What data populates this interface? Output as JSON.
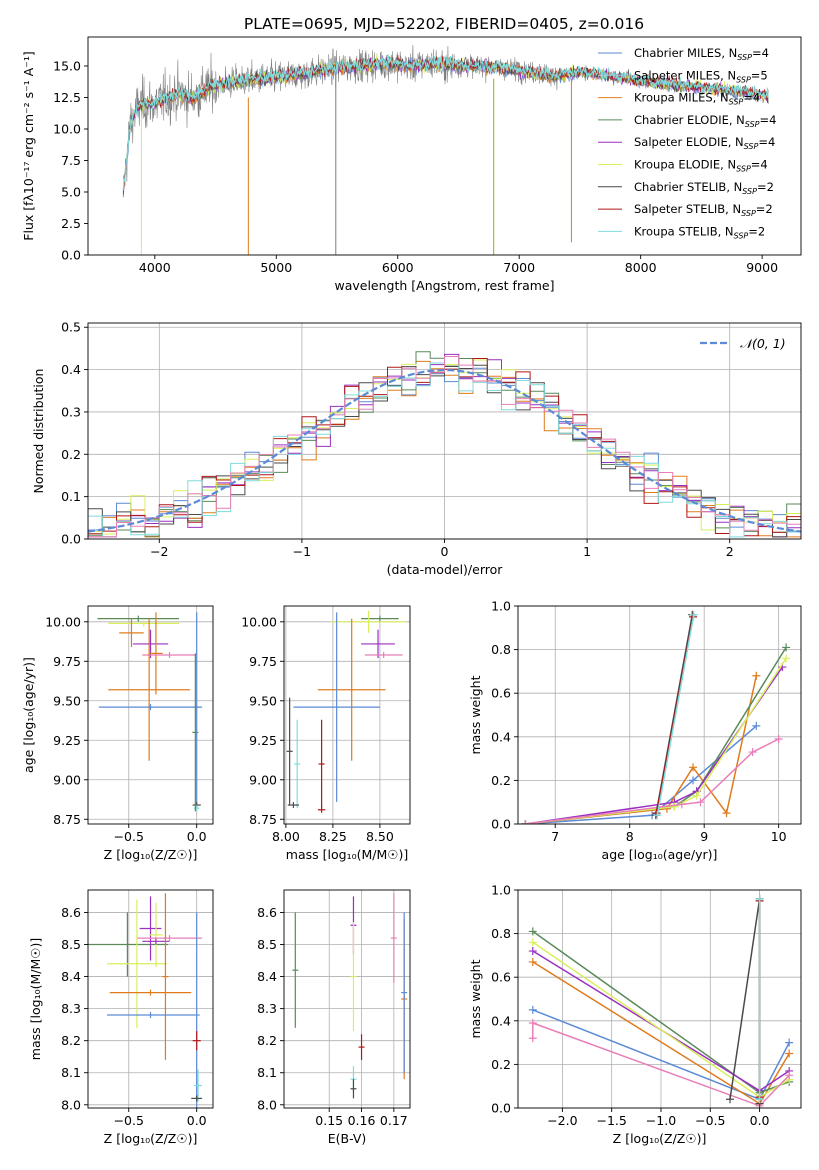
{
  "figure": {
    "title": "PLATE=0695, MJD=52202, FIBERID=0405, z=0.016"
  },
  "chart_data": [
    {
      "id": "spectrum",
      "type": "line",
      "title": "PLATE=0695, MJD=52202, FIBERID=0405, z=0.016",
      "xlabel": "wavelength [Angstrom, rest frame]",
      "ylabel": "Flux [fλ10⁻¹⁷ erg cm⁻² s⁻¹ A⁻¹]",
      "xlim": [
        3450,
        9320
      ],
      "ylim": [
        0,
        17.3
      ],
      "xticks": [
        4000,
        5000,
        6000,
        7000,
        8000,
        9000
      ],
      "yticks": [
        0.0,
        2.5,
        5.0,
        7.5,
        10.0,
        12.5,
        15.0
      ],
      "legend_position": "top-right",
      "series": [
        {
          "name": "Chabrier MILES, N_SSP=4",
          "color": "#5b8ad6"
        },
        {
          "name": "Salpeter MILES, N_SSP=5",
          "color": "#a7c7e7"
        },
        {
          "name": "Kroupa MILES, N_SSP=4",
          "color": "#e07b1b"
        },
        {
          "name": "Chabrier ELODIE, N_SSP=4",
          "color": "#5a8a5a"
        },
        {
          "name": "Salpeter ELODIE, N_SSP=4",
          "color": "#9b30c0"
        },
        {
          "name": "Kroupa ELODIE, N_SSP=4",
          "color": "#d9ef5a"
        },
        {
          "name": "Chabrier STELIB, N_SSP=2",
          "color": "#4a4a4a"
        },
        {
          "name": "Salpeter STELIB, N_SSP=2",
          "color": "#b01818"
        },
        {
          "name": "Kroupa STELIB, N_SSP=2",
          "color": "#7fdcdc"
        }
      ],
      "data_color": "#808080",
      "continuum_points": [
        [
          3740,
          5.0
        ],
        [
          3800,
          10.5
        ],
        [
          3850,
          11.5
        ],
        [
          3900,
          12.0
        ],
        [
          4000,
          12.0
        ],
        [
          4100,
          12.5
        ],
        [
          4200,
          12.8
        ],
        [
          4300,
          12.5
        ],
        [
          4400,
          13.0
        ],
        [
          4500,
          13.5
        ],
        [
          4700,
          13.8
        ],
        [
          4900,
          14.0
        ],
        [
          5100,
          14.2
        ],
        [
          5300,
          14.5
        ],
        [
          5500,
          14.8
        ],
        [
          5700,
          15.0
        ],
        [
          5900,
          15.2
        ],
        [
          6100,
          15.0
        ],
        [
          6300,
          15.2
        ],
        [
          6500,
          15.0
        ],
        [
          6700,
          15.0
        ],
        [
          6900,
          14.8
        ],
        [
          7100,
          14.5
        ],
        [
          7300,
          14.2
        ],
        [
          7500,
          14.5
        ],
        [
          7700,
          14.3
        ],
        [
          8000,
          13.8
        ],
        [
          8300,
          13.5
        ],
        [
          8600,
          13.2
        ],
        [
          8900,
          12.9
        ],
        [
          9050,
          12.6
        ]
      ],
      "spikes": [
        {
          "x": 3890,
          "ymin": 0.0,
          "ymax": 11.0,
          "color": "#d9ef5a"
        },
        {
          "x": 4770,
          "ymin": 0.0,
          "ymax": 12.5,
          "color": "#e07b1b"
        },
        {
          "x": 5490,
          "ymin": 0.0,
          "ymax": 14.5,
          "color": "#808080"
        },
        {
          "x": 6790,
          "ymin": 0.0,
          "ymax": 14.0,
          "color": "#a9a900"
        },
        {
          "x": 7430,
          "ymin": 1.0,
          "ymax": 14.0,
          "color": "#e07b1b"
        }
      ]
    },
    {
      "id": "residuals",
      "type": "step",
      "xlabel": "(data-model)/error",
      "ylabel": "Normed distribution",
      "xlim": [
        -2.5,
        2.5
      ],
      "ylim": [
        0,
        0.51
      ],
      "xticks": [
        -2,
        -1,
        0,
        1,
        2
      ],
      "yticks": [
        0.0,
        0.1,
        0.2,
        0.3,
        0.4,
        0.5
      ],
      "grid": true,
      "legend_position": "top-right",
      "reference": {
        "label": "𝒩(0, 1)",
        "color": "#5b8ad6",
        "mean": 0,
        "sigma": 1
      },
      "bin_width": 0.1,
      "series_colors": [
        "#5b8ad6",
        "#e07b1b",
        "#5a8a5a",
        "#9b30c0",
        "#d9ef5a",
        "#4a4a4a",
        "#b01818",
        "#7fdcdc",
        "#e87fb8"
      ]
    },
    {
      "id": "age-vs-Z",
      "type": "errorbar",
      "xlabel": "Z [log₁₀(Z/Z☉)]",
      "ylabel": "age  [log₁₀(age/yr)]",
      "xlim": [
        -0.8,
        0.12
      ],
      "ylim": [
        8.72,
        10.1
      ],
      "xticks": [
        -0.5,
        0.0
      ],
      "yticks": [
        8.75,
        9.0,
        9.25,
        9.5,
        9.75,
        10.0
      ],
      "grid": true,
      "points": [
        {
          "x": -0.43,
          "y": 10.02,
          "xerr": 0.3,
          "yerr": 0.0,
          "color": "#5a8a5a"
        },
        {
          "x": -0.39,
          "y": 9.99,
          "xerr": 0.26,
          "yerr": 0.0,
          "color": "#d9ef5a"
        },
        {
          "x": -0.48,
          "y": 9.93,
          "xerr": 0.09,
          "yerr": 0.09,
          "color": "#e07b1b"
        },
        {
          "x": -0.34,
          "y": 9.86,
          "xerr": 0.13,
          "yerr": 0.09,
          "color": "#9b30c0"
        },
        {
          "x": -0.3,
          "y": 9.8,
          "xerr": 0.05,
          "yerr": 0.26,
          "color": "#e07b1b"
        },
        {
          "x": -0.2,
          "y": 9.79,
          "xerr": 0.2,
          "yerr": 0.0,
          "color": "#e87fb8"
        },
        {
          "x": -0.35,
          "y": 9.57,
          "xerr": 0.3,
          "yerr": 0.45,
          "color": "#e07b1b"
        },
        {
          "x": -0.34,
          "y": 9.46,
          "xerr": 0.38,
          "yerr": 0.0,
          "color": "#5b8ad6"
        },
        {
          "x": 0.0,
          "y": 9.46,
          "xerr": 0.0,
          "yerr": 0.6,
          "color": "#5b8ad6"
        },
        {
          "x": 0.0,
          "y": 8.84,
          "xerr": 0.03,
          "yerr": 0.0,
          "color": "#4a4a4a"
        },
        {
          "x": 0.0,
          "y": 8.82,
          "xerr": 0.02,
          "yerr": 0.0,
          "color": "#7fdcdc"
        },
        {
          "x": -0.01,
          "y": 9.3,
          "xerr": 0.0,
          "yerr": 0.5,
          "color": "#5a8a5a"
        }
      ]
    },
    {
      "id": "age-vs-mass",
      "type": "errorbar",
      "xlabel": "mass [log₁₀(M/M☉)]",
      "ylabel": "",
      "xlim": [
        7.99,
        8.66
      ],
      "ylim": [
        8.72,
        10.1
      ],
      "xticks": [
        8.0,
        8.25,
        8.5
      ],
      "yticks": [
        8.75,
        9.0,
        9.25,
        9.5,
        9.75,
        10.0
      ],
      "grid": true,
      "points": [
        {
          "x": 8.5,
          "y": 10.02,
          "xerr": 0.1,
          "yerr": 0.0,
          "color": "#5a8a5a"
        },
        {
          "x": 8.44,
          "y": 10.0,
          "xerr": 0.2,
          "yerr": 0.07,
          "color": "#d9ef5a"
        },
        {
          "x": 8.49,
          "y": 9.86,
          "xerr": 0.09,
          "yerr": 0.09,
          "color": "#9b30c0"
        },
        {
          "x": 8.52,
          "y": 9.79,
          "xerr": 0.1,
          "yerr": 0.0,
          "color": "#e87fb8"
        },
        {
          "x": 8.35,
          "y": 9.57,
          "xerr": 0.18,
          "yerr": 0.45,
          "color": "#e07b1b"
        },
        {
          "x": 8.27,
          "y": 9.46,
          "xerr": 0.23,
          "yerr": 0.6,
          "color": "#5b8ad6"
        },
        {
          "x": 8.02,
          "y": 9.18,
          "xerr": 0.0,
          "yerr": 0.34,
          "color": "#4a4a4a"
        },
        {
          "x": 8.06,
          "y": 9.1,
          "xerr": 0.0,
          "yerr": 0.28,
          "color": "#7fdcdc"
        },
        {
          "x": 8.19,
          "y": 9.1,
          "xerr": 0.0,
          "yerr": 0.28,
          "color": "#b01818"
        },
        {
          "x": 8.04,
          "y": 8.84,
          "xerr": 0.03,
          "yerr": 0.0,
          "color": "#4a4a4a"
        },
        {
          "x": 8.19,
          "y": 8.81,
          "xerr": 0.02,
          "yerr": 0.0,
          "color": "#b01818"
        }
      ]
    },
    {
      "id": "mass-weight-vs-age",
      "type": "line",
      "xlabel": "age  [log₁₀(age/yr)]",
      "ylabel": "mass weight",
      "xlim": [
        6.5,
        10.3
      ],
      "ylim": [
        0,
        1.0
      ],
      "xticks": [
        7,
        8,
        9,
        10
      ],
      "yticks": [
        0.0,
        0.2,
        0.4,
        0.6,
        0.8,
        1.0
      ],
      "grid": true,
      "series": [
        {
          "color": "#5b8ad6",
          "x": [
            6.6,
            8.3,
            8.85,
            9.7
          ],
          "y": [
            0.0,
            0.04,
            0.2,
            0.45
          ]
        },
        {
          "color": "#e07b1b",
          "x": [
            6.6,
            8.5,
            8.85,
            9.3,
            9.7
          ],
          "y": [
            0.0,
            0.07,
            0.26,
            0.05,
            0.68
          ]
        },
        {
          "color": "#5a8a5a",
          "x": [
            6.6,
            8.6,
            8.9,
            10.1
          ],
          "y": [
            0.0,
            0.08,
            0.15,
            0.81
          ]
        },
        {
          "color": "#9b30c0",
          "x": [
            6.6,
            8.6,
            8.9,
            10.05
          ],
          "y": [
            0.0,
            0.1,
            0.15,
            0.72
          ]
        },
        {
          "color": "#d9ef5a",
          "x": [
            6.6,
            8.6,
            8.9,
            10.1
          ],
          "y": [
            0.0,
            0.08,
            0.13,
            0.76
          ]
        },
        {
          "color": "#e87fb8",
          "x": [
            6.6,
            8.7,
            8.95,
            9.65,
            10.0
          ],
          "y": [
            0.0,
            0.09,
            0.1,
            0.33,
            0.39
          ]
        },
        {
          "color": "#4a4a4a",
          "x": [
            8.35,
            8.84
          ],
          "y": [
            0.04,
            0.96
          ]
        },
        {
          "color": "#b01818",
          "x": [
            8.36,
            8.85
          ],
          "y": [
            0.05,
            0.95
          ]
        },
        {
          "color": "#7fdcdc",
          "x": [
            8.37,
            8.86
          ],
          "y": [
            0.04,
            0.96
          ]
        }
      ]
    },
    {
      "id": "mass-vs-Z",
      "type": "errorbar",
      "xlabel": "Z [log₁₀(Z/Z☉)]",
      "ylabel": "mass [log₁₀(M/M☉)]",
      "xlim": [
        -0.8,
        0.12
      ],
      "ylim": [
        7.99,
        8.67
      ],
      "xticks": [
        -0.5,
        0.0
      ],
      "yticks": [
        8.0,
        8.1,
        8.2,
        8.3,
        8.4,
        8.5,
        8.6
      ],
      "grid": true,
      "points": [
        {
          "x": -0.51,
          "y": 8.5,
          "xerr": 0.3,
          "yerr": 0.1,
          "color": "#5a8a5a"
        },
        {
          "x": -0.34,
          "y": 8.55,
          "xerr": 0.08,
          "yerr": 0.1,
          "color": "#9b30c0"
        },
        {
          "x": -0.3,
          "y": 8.53,
          "xerr": 0.05,
          "yerr": 0.1,
          "color": "#d9ef5a"
        },
        {
          "x": -0.3,
          "y": 8.51,
          "xerr": 0.1,
          "yerr": 0.0,
          "color": "#9b30c0"
        },
        {
          "x": -0.2,
          "y": 8.52,
          "xerr": 0.24,
          "yerr": 0.0,
          "color": "#e87fb8"
        },
        {
          "x": -0.44,
          "y": 8.44,
          "xerr": 0.22,
          "yerr": 0.2,
          "color": "#d9ef5a"
        },
        {
          "x": -0.34,
          "y": 8.35,
          "xerr": 0.3,
          "yerr": 0.0,
          "color": "#e07b1b"
        },
        {
          "x": -0.23,
          "y": 8.4,
          "xerr": 0.0,
          "yerr": 0.26,
          "color": "#e07b1b"
        },
        {
          "x": -0.34,
          "y": 8.28,
          "xerr": 0.32,
          "yerr": 0.0,
          "color": "#5b8ad6"
        },
        {
          "x": 0.0,
          "y": 8.28,
          "xerr": 0.0,
          "yerr": 0.32,
          "color": "#5b8ad6"
        },
        {
          "x": 0.0,
          "y": 8.2,
          "xerr": 0.03,
          "yerr": 0.03,
          "color": "#b01818"
        },
        {
          "x": 0.01,
          "y": 8.06,
          "xerr": 0.03,
          "yerr": 0.05,
          "color": "#7fdcdc"
        },
        {
          "x": 0.0,
          "y": 8.02,
          "xerr": 0.04,
          "yerr": 0.0,
          "color": "#4a4a4a"
        }
      ]
    },
    {
      "id": "mass-vs-EBV",
      "type": "errorbar",
      "xlabel": "E(B-V)",
      "ylabel": "",
      "xlim": [
        0.136,
        0.175
      ],
      "ylim": [
        7.99,
        8.67
      ],
      "xticks": [
        0.15,
        0.16,
        0.17
      ],
      "yticks": [
        8.0,
        8.1,
        8.2,
        8.3,
        8.4,
        8.5,
        8.6
      ],
      "grid": true,
      "points": [
        {
          "x": 0.1395,
          "y": 8.42,
          "xerr": 0.0,
          "yerr": 0.18,
          "color": "#5a8a5a"
        },
        {
          "x": 0.1575,
          "y": 8.56,
          "xerr": 0.0,
          "yerr": 0.09,
          "color": "#9b30c0"
        },
        {
          "x": 0.1575,
          "y": 8.4,
          "xerr": 0.0,
          "yerr": 0.17,
          "color": "#d9ef5a"
        },
        {
          "x": 0.1575,
          "y": 8.08,
          "xerr": 0.0,
          "yerr": 0.04,
          "color": "#7fdcdc"
        },
        {
          "x": 0.1575,
          "y": 8.05,
          "xerr": 0.0,
          "yerr": 0.03,
          "color": "#4a4a4a"
        },
        {
          "x": 0.16,
          "y": 8.18,
          "xerr": 0.0,
          "yerr": 0.04,
          "color": "#b01818"
        },
        {
          "x": 0.17,
          "y": 8.52,
          "xerr": 0.0,
          "yerr": 0.14,
          "color": "#e87fb8"
        },
        {
          "x": 0.1732,
          "y": 8.33,
          "xerr": 0.0,
          "yerr": 0.25,
          "color": "#e07b1b"
        },
        {
          "x": 0.1732,
          "y": 8.35,
          "xerr": 0.0,
          "yerr": 0.25,
          "color": "#5b8ad6"
        }
      ]
    },
    {
      "id": "mass-weight-vs-Z",
      "type": "line",
      "xlabel": "Z [log₁₀(Z/Z☉)]",
      "ylabel": "mass weight",
      "xlim": [
        -2.45,
        0.42
      ],
      "ylim": [
        0,
        1.0
      ],
      "xticks": [
        -2.0,
        -1.5,
        -1.0,
        -0.5,
        0.0
      ],
      "yticks": [
        0.0,
        0.2,
        0.4,
        0.6,
        0.8,
        1.0
      ],
      "grid": true,
      "series": [
        {
          "color": "#5b8ad6",
          "x": [
            -2.3,
            0.0,
            0.3
          ],
          "y": [
            0.45,
            0.04,
            0.3
          ]
        },
        {
          "color": "#e07b1b",
          "x": [
            -2.3,
            0.0,
            0.3
          ],
          "y": [
            0.67,
            0.02,
            0.25
          ]
        },
        {
          "color": "#5a8a5a",
          "x": [
            -2.3,
            0.0,
            0.3
          ],
          "y": [
            0.81,
            0.07,
            0.12
          ]
        },
        {
          "color": "#9b30c0",
          "x": [
            -2.3,
            0.0,
            0.3
          ],
          "y": [
            0.72,
            0.08,
            0.17
          ]
        },
        {
          "color": "#d9ef5a",
          "x": [
            -2.3,
            0.0,
            0.3
          ],
          "y": [
            0.76,
            0.05,
            0.13
          ]
        },
        {
          "color": "#e87fb8",
          "x": [
            -2.3,
            -2.3,
            0.0,
            0.3
          ],
          "y": [
            0.32,
            0.39,
            0.01,
            0.15
          ]
        },
        {
          "color": "#4a4a4a",
          "x": [
            -0.3,
            0.0,
            0.0
          ],
          "y": [
            0.04,
            0.96,
            0.02
          ]
        },
        {
          "color": "#b01818",
          "x": [
            0.0,
            0.0
          ],
          "y": [
            0.95,
            0.05
          ]
        },
        {
          "color": "#7fdcdc",
          "x": [
            0.0,
            0.0
          ],
          "y": [
            0.96,
            0.04
          ]
        }
      ]
    }
  ]
}
